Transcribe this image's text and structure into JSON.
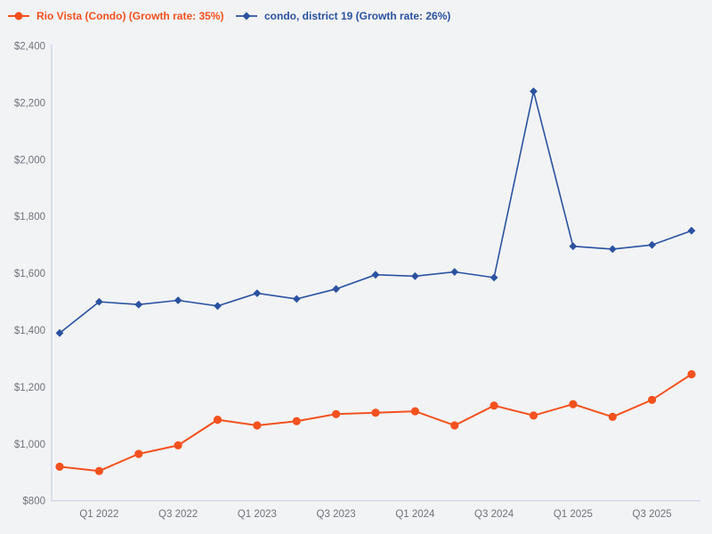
{
  "colors": {
    "background": "#f2f3f5",
    "axis_line": "#c8d0e4",
    "tick_text": "#6f747b",
    "series_orange": "#f4511e",
    "series_blue": "#2a52a0"
  },
  "legend": {
    "items": [
      {
        "label": "Rio Vista (Condo) (Growth rate: 35%)",
        "color": "#f4511e",
        "marker": "circle"
      },
      {
        "label": "condo, district 19 (Growth rate: 26%)",
        "color": "#2a52a0",
        "marker": "diamond"
      }
    ]
  },
  "chart_data": {
    "type": "line",
    "title": "",
    "xlabel": "",
    "ylabel": "",
    "grid": false,
    "legend_position": "top-left",
    "x": [
      "Q4 2021",
      "Q1 2022",
      "Q2 2022",
      "Q3 2022",
      "Q4 2022",
      "Q1 2023",
      "Q2 2023",
      "Q3 2023",
      "Q4 2023",
      "Q1 2024",
      "Q2 2024",
      "Q3 2024",
      "Q4 2024",
      "Q1 2025",
      "Q2 2025",
      "Q3 2025",
      "Q4 2025"
    ],
    "x_tick_labels": [
      "Q1 2022",
      "Q3 2022",
      "Q1 2023",
      "Q3 2023",
      "Q1 2024",
      "Q3 2024",
      "Q1 2025",
      "Q3 2025"
    ],
    "x_tick_indices": [
      1,
      3,
      5,
      7,
      9,
      11,
      13,
      15
    ],
    "ylim": [
      800,
      2400
    ],
    "ytick_values": [
      800,
      1000,
      1200,
      1400,
      1600,
      1800,
      2000,
      2200,
      2400
    ],
    "ytick_labels": [
      "$800",
      "$1,000",
      "$1,200",
      "$1,400",
      "$1,600",
      "$1,800",
      "$2,000",
      "$2,200",
      "$2,400"
    ],
    "series": [
      {
        "name": "Rio Vista (Condo) (Growth rate: 35%)",
        "color": "#f4511e",
        "marker": "circle",
        "values": [
          920,
          905,
          965,
          995,
          1085,
          1065,
          1080,
          1105,
          1110,
          1115,
          1065,
          1135,
          1100,
          1140,
          1095,
          1155,
          1245
        ]
      },
      {
        "name": "condo, district 19 (Growth rate: 26%)",
        "color": "#2a52a0",
        "marker": "diamond",
        "values": [
          1390,
          1500,
          1490,
          1505,
          1485,
          1530,
          1510,
          1545,
          1595,
          1590,
          1605,
          1585,
          2240,
          1695,
          1685,
          1700,
          1750
        ]
      }
    ]
  }
}
